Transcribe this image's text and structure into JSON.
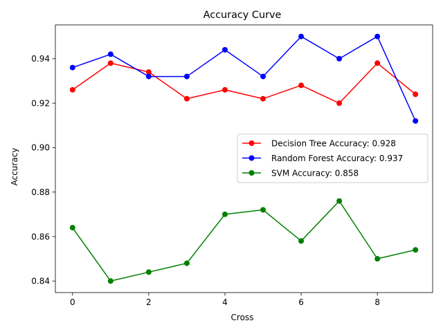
{
  "chart_data": {
    "type": "line",
    "title": "Accuracy Curve",
    "xlabel": "Cross",
    "ylabel": "Accuracy",
    "x": [
      0,
      1,
      2,
      3,
      4,
      5,
      6,
      7,
      8,
      9
    ],
    "xlim": [
      -0.45,
      9.45
    ],
    "ylim": [
      0.8348,
      0.9552
    ],
    "xticks": [
      0,
      2,
      4,
      6,
      8
    ],
    "yticks": [
      0.84,
      0.86,
      0.88,
      0.9,
      0.92,
      0.94
    ],
    "xtick_labels": [
      "0",
      "2",
      "4",
      "6",
      "8"
    ],
    "ytick_labels": [
      "0.84",
      "0.86",
      "0.88",
      "0.90",
      "0.92",
      "0.94"
    ],
    "grid": false,
    "legend_position": "center-right",
    "series": [
      {
        "name": "Decision Tree Accuracy: 0.928",
        "color": "#ff0000",
        "values": [
          0.926,
          0.938,
          0.934,
          0.922,
          0.926,
          0.922,
          0.928,
          0.92,
          0.938,
          0.924
        ]
      },
      {
        "name": "Random Forest Accuracy: 0.937",
        "color": "#0000ff",
        "values": [
          0.936,
          0.942,
          0.932,
          0.932,
          0.944,
          0.932,
          0.95,
          0.94,
          0.95,
          0.912
        ]
      },
      {
        "name": "SVM Accuracy: 0.858",
        "color": "#008000",
        "values": [
          0.864,
          0.84,
          0.844,
          0.848,
          0.87,
          0.872,
          0.858,
          0.876,
          0.85,
          0.854
        ]
      }
    ]
  }
}
